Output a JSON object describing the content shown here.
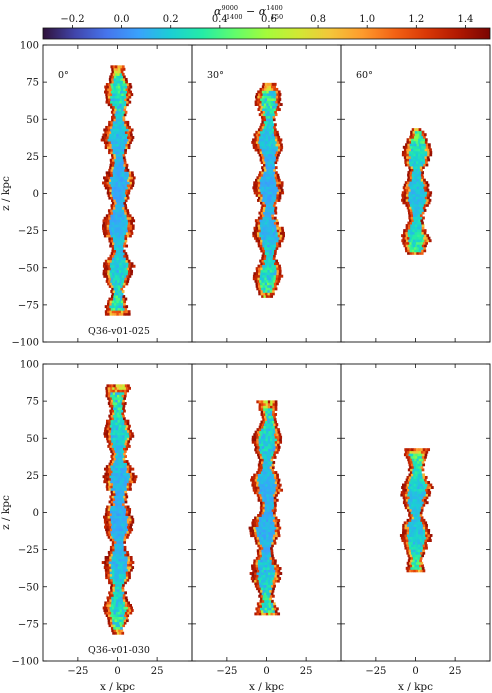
{
  "chart_data": {
    "type": "heatmap",
    "colorbar": {
      "label": "α",
      "label_sub_sup": [
        [
          "1400",
          "9000"
        ],
        [
          "150",
          "1400"
        ]
      ],
      "ticks": [
        "−0.2",
        "0.0",
        "0.2",
        "0.4",
        "0.6",
        "0.8",
        "1.0",
        "1.2",
        "1.4"
      ],
      "tick_values": [
        -0.2,
        0.0,
        0.2,
        0.4,
        0.6,
        0.8,
        1.0,
        1.2,
        1.4
      ],
      "range": [
        -0.32,
        1.5
      ],
      "colormap": [
        "#30123b",
        "#4145ab",
        "#4675ed",
        "#39a2fc",
        "#1bcfd4",
        "#24eca6",
        "#61fc6c",
        "#a4fc3b",
        "#d1e834",
        "#f3c63a",
        "#fe9b2d",
        "#f36315",
        "#d93806",
        "#b11901",
        "#7a0402"
      ]
    },
    "xlabel": "x / kpc",
    "ylabel": "z / kpc",
    "xlim": [
      -47,
      47
    ],
    "ylim": [
      -100,
      100
    ],
    "xticks": [
      "−25",
      "0",
      "25"
    ],
    "xtick_values": [
      -25,
      0,
      25
    ],
    "yticks": [
      "−100",
      "−75",
      "−50",
      "−25",
      "0",
      "25",
      "50",
      "75",
      "100"
    ],
    "ytick_values": [
      -100,
      -75,
      -50,
      -25,
      0,
      25,
      50,
      75,
      100
    ],
    "panels": [
      {
        "row": 0,
        "col": 0,
        "angle": "0°",
        "label": "",
        "z_top": 86,
        "z_bottom": -82,
        "half_width": 7.2,
        "core_value": 0.05,
        "edge_value": 1.45
      },
      {
        "row": 0,
        "col": 1,
        "angle": "30°",
        "label": "",
        "z_top": 73,
        "z_bottom": -70,
        "half_width": 7.0,
        "core_value": 0.05,
        "edge_value": 1.45
      },
      {
        "row": 0,
        "col": 2,
        "angle": "60°",
        "label": "",
        "z_top": 44,
        "z_bottom": -41,
        "half_width": 7.0,
        "core_value": 0.1,
        "edge_value": 1.45
      },
      {
        "row": 1,
        "col": 0,
        "angle": "",
        "label": "Q36-v01-030",
        "z_top": 86,
        "z_bottom": -82,
        "half_width": 7.2,
        "core_value": 0.05,
        "edge_value": 1.45
      },
      {
        "row": 1,
        "col": 1,
        "angle": "",
        "label": "",
        "z_top": 74,
        "z_bottom": -69,
        "half_width": 7.0,
        "core_value": 0.05,
        "edge_value": 1.45
      },
      {
        "row": 1,
        "col": 2,
        "angle": "",
        "label": "",
        "z_top": 42,
        "z_bottom": -40,
        "half_width": 7.0,
        "core_value": 0.1,
        "edge_value": 1.45
      }
    ],
    "row_labels": [
      "Q36-v01-025",
      "Q36-v01-030"
    ]
  }
}
